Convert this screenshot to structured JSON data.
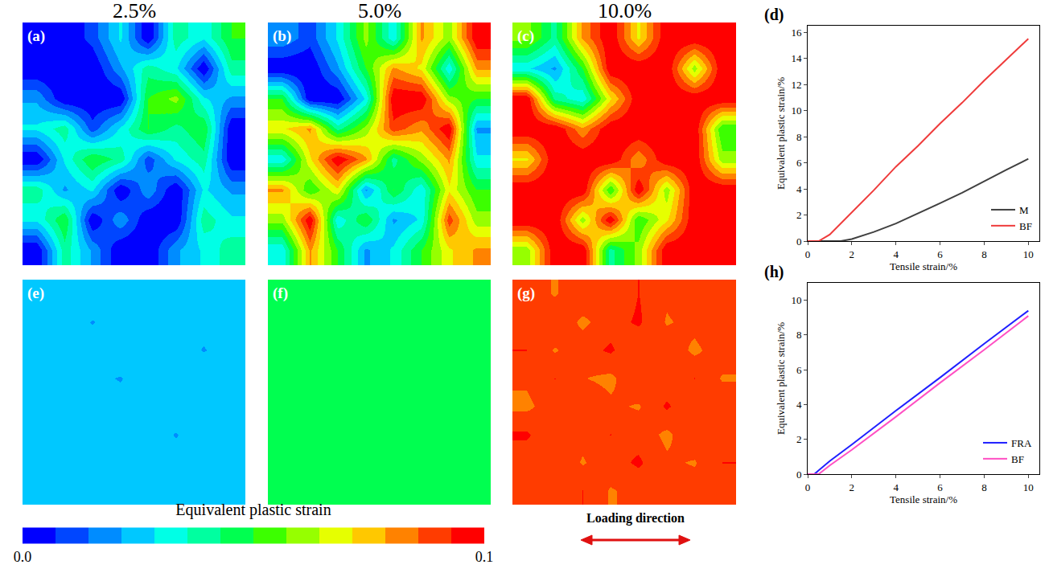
{
  "chart_data": [
    {
      "type": "heatmap",
      "panel": "(a)",
      "title": "2.5%",
      "tick_labels": false,
      "cells": [
        [
          0.0,
          0.0,
          0.01,
          0.03,
          0.0,
          0.04,
          0.03,
          0.05
        ],
        [
          0.0,
          0.0,
          0.0,
          0.02,
          0.04,
          0.03,
          0.0,
          0.04
        ],
        [
          0.02,
          0.0,
          0.0,
          0.0,
          0.05,
          0.06,
          0.03,
          0.02
        ],
        [
          0.03,
          0.04,
          0.01,
          0.03,
          0.05,
          0.04,
          0.05,
          0.0
        ],
        [
          0.0,
          0.03,
          0.05,
          0.04,
          0.01,
          0.03,
          0.04,
          0.0
        ],
        [
          0.04,
          0.02,
          0.03,
          0.0,
          0.02,
          0.0,
          0.03,
          0.02
        ],
        [
          0.03,
          0.05,
          0.0,
          0.02,
          0.0,
          0.0,
          0.04,
          0.03
        ],
        [
          0.0,
          0.04,
          0.02,
          0.0,
          0.0,
          0.02,
          0.03,
          0.04
        ]
      ]
    },
    {
      "type": "heatmap",
      "panel": "(b)",
      "title": "5.0%",
      "tick_labels": false,
      "cells": [
        [
          0.02,
          0.01,
          0.03,
          0.06,
          0.03,
          0.08,
          0.06,
          0.1
        ],
        [
          0.0,
          0.0,
          0.02,
          0.05,
          0.08,
          0.07,
          0.03,
          0.08
        ],
        [
          0.05,
          0.0,
          0.0,
          0.03,
          0.1,
          0.1,
          0.06,
          0.05
        ],
        [
          0.07,
          0.08,
          0.04,
          0.06,
          0.09,
          0.08,
          0.1,
          0.02
        ],
        [
          0.03,
          0.07,
          0.1,
          0.08,
          0.04,
          0.06,
          0.08,
          0.03
        ],
        [
          0.08,
          0.05,
          0.07,
          0.02,
          0.05,
          0.03,
          0.07,
          0.05
        ],
        [
          0.06,
          0.1,
          0.03,
          0.05,
          0.02,
          0.03,
          0.09,
          0.06
        ],
        [
          0.03,
          0.08,
          0.05,
          0.02,
          0.03,
          0.05,
          0.07,
          0.08
        ]
      ]
    },
    {
      "type": "heatmap",
      "panel": "(c)",
      "title": "10.0%",
      "tick_labels": false,
      "cells": [
        [
          0.06,
          0.04,
          0.08,
          0.1,
          0.07,
          0.1,
          0.1,
          0.1
        ],
        [
          0.03,
          0.02,
          0.05,
          0.1,
          0.1,
          0.1,
          0.06,
          0.1
        ],
        [
          0.1,
          0.04,
          0.03,
          0.07,
          0.1,
          0.1,
          0.1,
          0.1
        ],
        [
          0.1,
          0.1,
          0.08,
          0.1,
          0.1,
          0.1,
          0.1,
          0.05
        ],
        [
          0.07,
          0.1,
          0.1,
          0.1,
          0.08,
          0.1,
          0.1,
          0.06
        ],
        [
          0.1,
          0.1,
          0.1,
          0.05,
          0.1,
          0.06,
          0.1,
          0.1
        ],
        [
          0.1,
          0.1,
          0.06,
          0.1,
          0.05,
          0.07,
          0.1,
          0.1
        ],
        [
          0.06,
          0.1,
          0.1,
          0.04,
          0.06,
          0.1,
          0.1,
          0.1
        ]
      ]
    },
    {
      "type": "heatmap",
      "panel": "(e)",
      "tick_labels": false,
      "cells": [
        [
          0.025,
          0.024,
          0.027,
          0.022,
          0.026,
          0.024,
          0.025,
          0.023
        ],
        [
          0.023,
          0.026,
          0.021,
          0.025,
          0.027,
          0.022,
          0.024,
          0.026
        ],
        [
          0.026,
          0.022,
          0.025,
          0.028,
          0.023,
          0.025,
          0.021,
          0.025
        ],
        [
          0.024,
          0.027,
          0.023,
          0.021,
          0.026,
          0.024,
          0.027,
          0.022
        ],
        [
          0.022,
          0.025,
          0.026,
          0.024,
          0.022,
          0.027,
          0.023,
          0.025
        ],
        [
          0.027,
          0.023,
          0.024,
          0.026,
          0.025,
          0.021,
          0.026,
          0.024
        ],
        [
          0.024,
          0.026,
          0.022,
          0.025,
          0.027,
          0.024,
          0.022,
          0.026
        ],
        [
          0.025,
          0.023,
          0.026,
          0.023,
          0.024,
          0.026,
          0.025,
          0.023
        ]
      ]
    },
    {
      "type": "heatmap",
      "panel": "(f)",
      "tick_labels": false,
      "cells": [
        [
          0.047,
          0.046,
          0.049,
          0.044,
          0.048,
          0.046,
          0.047,
          0.045
        ],
        [
          0.045,
          0.048,
          0.043,
          0.047,
          0.05,
          0.044,
          0.046,
          0.048
        ],
        [
          0.048,
          0.044,
          0.047,
          0.05,
          0.045,
          0.047,
          0.043,
          0.047
        ],
        [
          0.046,
          0.049,
          0.045,
          0.043,
          0.048,
          0.046,
          0.049,
          0.044
        ],
        [
          0.044,
          0.047,
          0.048,
          0.046,
          0.044,
          0.049,
          0.045,
          0.047
        ],
        [
          0.049,
          0.045,
          0.046,
          0.048,
          0.047,
          0.043,
          0.048,
          0.046
        ],
        [
          0.046,
          0.048,
          0.044,
          0.047,
          0.049,
          0.046,
          0.044,
          0.048
        ],
        [
          0.047,
          0.045,
          0.048,
          0.045,
          0.046,
          0.048,
          0.047,
          0.045
        ]
      ]
    },
    {
      "type": "heatmap",
      "panel": "(g)",
      "tick_labels": false,
      "cells": [
        [
          0.09,
          0.085,
          0.092,
          0.086,
          0.093,
          0.087,
          0.091,
          0.086
        ],
        [
          0.086,
          0.092,
          0.084,
          0.09,
          0.094,
          0.085,
          0.088,
          0.092
        ],
        [
          0.093,
          0.085,
          0.09,
          0.094,
          0.086,
          0.091,
          0.084,
          0.09
        ],
        [
          0.087,
          0.093,
          0.086,
          0.084,
          0.092,
          0.088,
          0.093,
          0.085
        ],
        [
          0.084,
          0.09,
          0.092,
          0.087,
          0.085,
          0.094,
          0.086,
          0.091
        ],
        [
          0.094,
          0.086,
          0.088,
          0.093,
          0.09,
          0.084,
          0.092,
          0.087
        ],
        [
          0.088,
          0.092,
          0.085,
          0.09,
          0.094,
          0.087,
          0.085,
          0.093
        ],
        [
          0.09,
          0.086,
          0.093,
          0.085,
          0.088,
          0.092,
          0.09,
          0.086
        ]
      ]
    },
    {
      "type": "colorbar",
      "title": "Equivalent plastic strain",
      "zlim": [
        0,
        0.1
      ],
      "zticks": [
        {
          "value": 0,
          "label": "0.0"
        },
        {
          "value": 0.1,
          "label": "0.1"
        }
      ],
      "annotations": [
        "Loading direction"
      ]
    },
    {
      "type": "line",
      "panel": "(d)",
      "x_label": "Tensile strain/%",
      "y_label": "Equivalent plastic strain/%",
      "xlim": [
        0,
        10.5
      ],
      "ylim": [
        0,
        16.5
      ],
      "xticks": [
        0,
        2,
        4,
        6,
        8,
        10
      ],
      "yticks": [
        0,
        2,
        4,
        6,
        8,
        10,
        12,
        14,
        16
      ],
      "legend": "lower right",
      "series": [
        {
          "name": "M",
          "color": "#404040",
          "x": [
            0,
            1,
            1.5,
            2,
            3,
            4,
            5,
            6,
            7,
            8,
            9,
            10
          ],
          "values": [
            0,
            0,
            0,
            0.15,
            0.7,
            1.35,
            2.1,
            2.9,
            3.7,
            4.6,
            5.45,
            6.3
          ]
        },
        {
          "name": "BF",
          "color": "#ef3b3b",
          "x": [
            0,
            0.5,
            1,
            2,
            3,
            4,
            5,
            6,
            7,
            8,
            9,
            10
          ],
          "values": [
            0,
            0,
            0.5,
            2.2,
            3.9,
            5.7,
            7.3,
            9.0,
            10.6,
            12.3,
            13.9,
            15.5
          ]
        }
      ]
    },
    {
      "type": "line",
      "panel": "(h)",
      "x_label": "Tensile strain/%",
      "y_label": "Equivalent plastic strain/%",
      "xlim": [
        0,
        10.5
      ],
      "ylim": [
        0,
        11
      ],
      "xticks": [
        0,
        2,
        4,
        6,
        8,
        10
      ],
      "yticks": [
        0,
        2,
        4,
        6,
        8,
        10
      ],
      "legend": "lower right",
      "series": [
        {
          "name": "FRA",
          "color": "#1f1fff",
          "x": [
            0,
            0.3,
            1,
            2,
            4,
            6,
            8,
            10
          ],
          "values": [
            0,
            0,
            0.75,
            1.7,
            3.65,
            5.55,
            7.5,
            9.4
          ]
        },
        {
          "name": "BF",
          "color": "#ff4fc3",
          "x": [
            0,
            0.5,
            1,
            2,
            4,
            6,
            8,
            10
          ],
          "values": [
            0,
            0,
            0.5,
            1.4,
            3.3,
            5.25,
            7.15,
            9.1
          ]
        }
      ]
    }
  ]
}
